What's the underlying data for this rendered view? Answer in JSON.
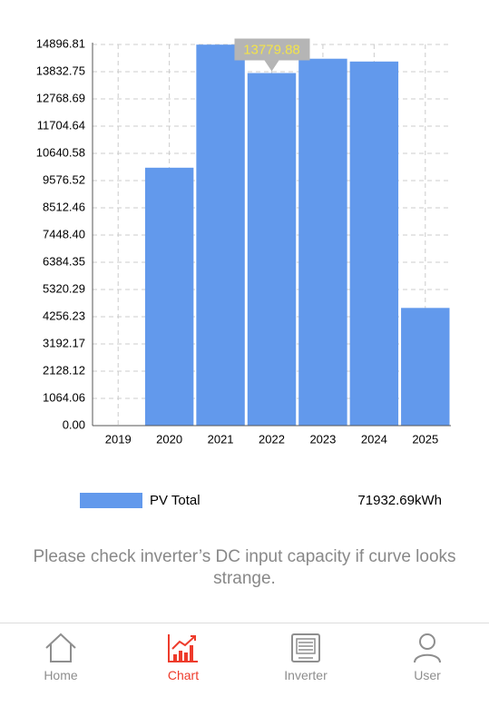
{
  "chart_data": {
    "type": "bar",
    "categories": [
      "2019",
      "2020",
      "2021",
      "2022",
      "2023",
      "2024",
      "2025"
    ],
    "series": [
      {
        "name": "PV Total",
        "color": "#6299ec",
        "values": [
          0,
          10080,
          14890,
          13779.88,
          14340,
          14230,
          4600
        ]
      }
    ],
    "ylim": [
      0,
      14896.81
    ],
    "yticks": [
      {
        "value": 0,
        "label": "0.00"
      },
      1064.06,
      2128.12,
      3192.17,
      4256.23,
      5320.29,
      6384.35,
      {
        "value": 7448.4,
        "label": "7448.40"
      },
      8512.46,
      9576.52,
      10640.58,
      11704.64,
      12768.69,
      13832.75,
      14896.81
    ],
    "grid": true,
    "tooltip_index": 3,
    "total": "71932.69kWh"
  },
  "note": "Please check inverter’s DC input capacity if curve looks strange.",
  "tabs": [
    "Home",
    "Chart",
    "Inverter",
    "User"
  ],
  "active_tab": 1
}
